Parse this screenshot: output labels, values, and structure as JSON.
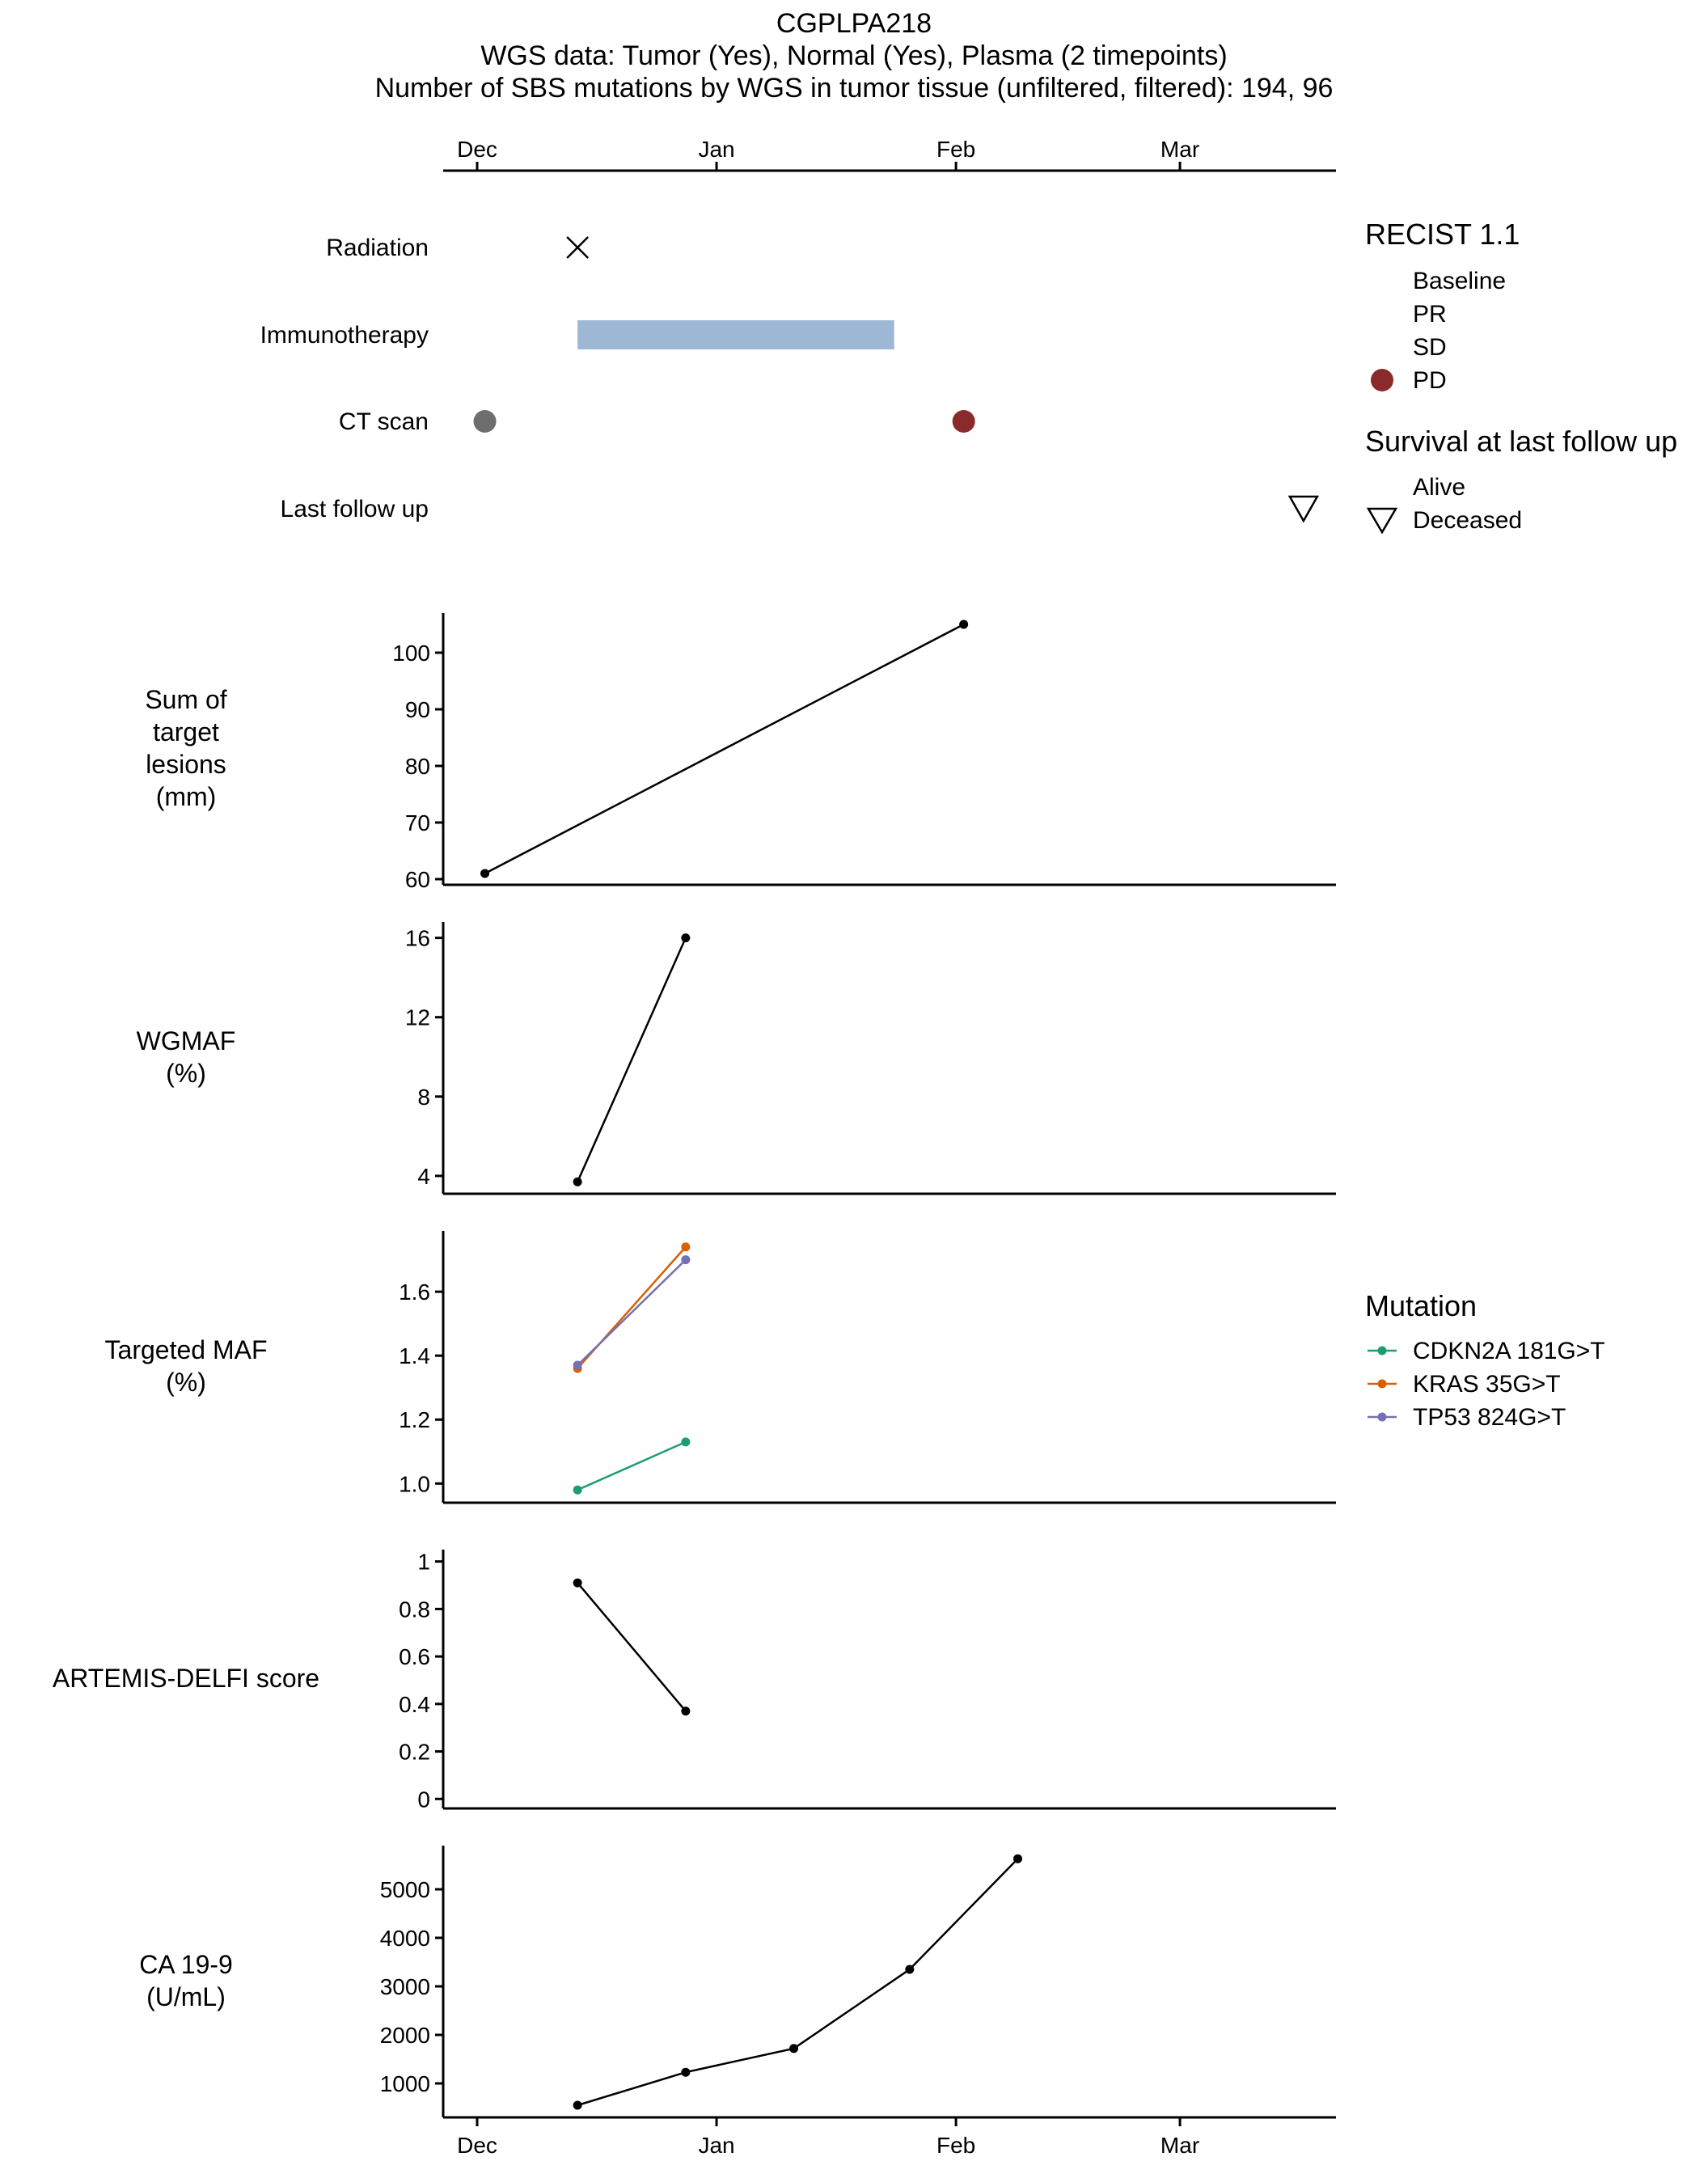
{
  "header": {
    "title": "CGPLPA218",
    "subtitle": "WGS data: Tumor (Yes), Normal (Yes), Plasma (2 timepoints)",
    "caption": "Number of SBS mutations by WGS in tumor tissue (unfiltered, filtered): 194, 96"
  },
  "colors": {
    "immunotherapy": "#9db7d5",
    "ct_baseline": "#6e6e6e",
    "ct_pd": "#8b2a2a",
    "line": "#000000",
    "CDKN2A 181G>T": "#1b9e77",
    "KRAS 35G>T": "#d95f02",
    "TP53 824G>T": "#7570b3"
  },
  "chart_data": [
    {
      "type": "timeline",
      "x_ticks": [
        "Dec",
        "Jan",
        "Feb",
        "Mar"
      ],
      "rows": [
        {
          "label": "Radiation",
          "events": [
            {
              "date": "2019-12-14",
              "marker": "cross"
            }
          ]
        },
        {
          "label": "Immunotherapy",
          "spans": [
            {
              "start": "2019-12-14",
              "end": "2020-01-24"
            }
          ]
        },
        {
          "label": "CT scan",
          "events": [
            {
              "date": "2019-12-02",
              "marker": "circle",
              "recist": "Baseline"
            },
            {
              "date": "2020-02-02",
              "marker": "circle",
              "recist": "PD"
            }
          ]
        },
        {
          "label": "Last follow up",
          "events": [
            {
              "date": "2020-03-17",
              "marker": "triangle-down",
              "survival": "Deceased"
            }
          ]
        }
      ],
      "legends": [
        {
          "title": "RECIST 1.1",
          "items": [
            "Baseline",
            "PR",
            "SD",
            "PD"
          ]
        },
        {
          "title": "Survival at last follow up",
          "items": [
            "Alive",
            "Deceased"
          ]
        }
      ]
    },
    {
      "type": "line",
      "ylabel": [
        "Sum of",
        "target",
        "lesions",
        "(mm)"
      ],
      "y_ticks": [
        60,
        70,
        80,
        90,
        100
      ],
      "ylim": [
        59,
        107
      ],
      "series": [
        {
          "points": [
            [
              "2019-12-02",
              61
            ],
            [
              "2020-02-02",
              105
            ]
          ]
        }
      ]
    },
    {
      "type": "line",
      "ylabel": [
        "WGMAF",
        "(%)"
      ],
      "y_ticks": [
        4,
        8,
        12,
        16
      ],
      "ylim": [
        3.1,
        16.8
      ],
      "series": [
        {
          "points": [
            [
              "2019-12-14",
              3.7
            ],
            [
              "2019-12-28",
              16
            ]
          ]
        }
      ]
    },
    {
      "type": "line",
      "ylabel": [
        "Targeted MAF",
        "(%)"
      ],
      "y_ticks": [
        "1.0",
        "1.2",
        "1.4",
        "1.6"
      ],
      "ylim": [
        0.94,
        1.79
      ],
      "series": [
        {
          "name": "CDKN2A 181G>T",
          "points": [
            [
              "2019-12-14",
              0.98
            ],
            [
              "2019-12-28",
              1.13
            ]
          ]
        },
        {
          "name": "KRAS 35G>T",
          "points": [
            [
              "2019-12-14",
              1.36
            ],
            [
              "2019-12-28",
              1.74
            ]
          ]
        },
        {
          "name": "TP53 824G>T",
          "points": [
            [
              "2019-12-14",
              1.37
            ],
            [
              "2019-12-28",
              1.7
            ]
          ]
        }
      ],
      "legend": {
        "title": "Mutation",
        "items": [
          "CDKN2A 181G>T",
          "KRAS 35G>T",
          "TP53 824G>T"
        ]
      }
    },
    {
      "type": "line",
      "ylabel": [
        "ARTEMIS-DELFI score"
      ],
      "y_ticks": [
        "0",
        "0.2",
        "0.4",
        "0.6",
        "0.8",
        "1"
      ],
      "ylim": [
        -0.04,
        1.05
      ],
      "series": [
        {
          "points": [
            [
              "2019-12-14",
              0.91
            ],
            [
              "2019-12-28",
              0.37
            ]
          ]
        }
      ]
    },
    {
      "type": "line",
      "ylabel": [
        "CA 19-9",
        "(U/mL)"
      ],
      "y_ticks": [
        1000,
        2000,
        3000,
        4000,
        5000
      ],
      "ylim": [
        300,
        5900
      ],
      "x_ticks": [
        "Dec",
        "Jan",
        "Feb",
        "Mar"
      ],
      "series": [
        {
          "points": [
            [
              "2019-12-14",
              550
            ],
            [
              "2019-12-28",
              1230
            ],
            [
              "2020-01-11",
              1720
            ],
            [
              "2020-01-26",
              3350
            ],
            [
              "2020-02-09",
              5630
            ]
          ]
        }
      ]
    }
  ]
}
